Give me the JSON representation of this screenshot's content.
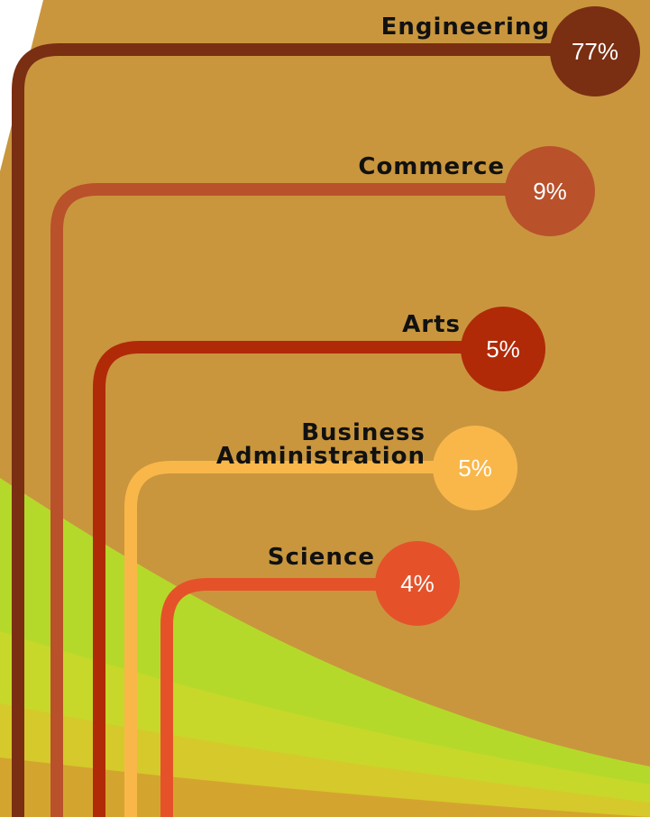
{
  "items": [
    {
      "label": "Engineering",
      "value": "77%",
      "color": "#7a2e12"
    },
    {
      "label": "Commerce",
      "value": "9%",
      "color": "#b9512b"
    },
    {
      "label": "Arts",
      "value": "5%",
      "color": "#b02a08"
    },
    {
      "label": "Business Administration",
      "value": "5%",
      "color": "#f9b74a"
    },
    {
      "label": "Science",
      "value": "4%",
      "color": "#e5522a"
    }
  ]
}
